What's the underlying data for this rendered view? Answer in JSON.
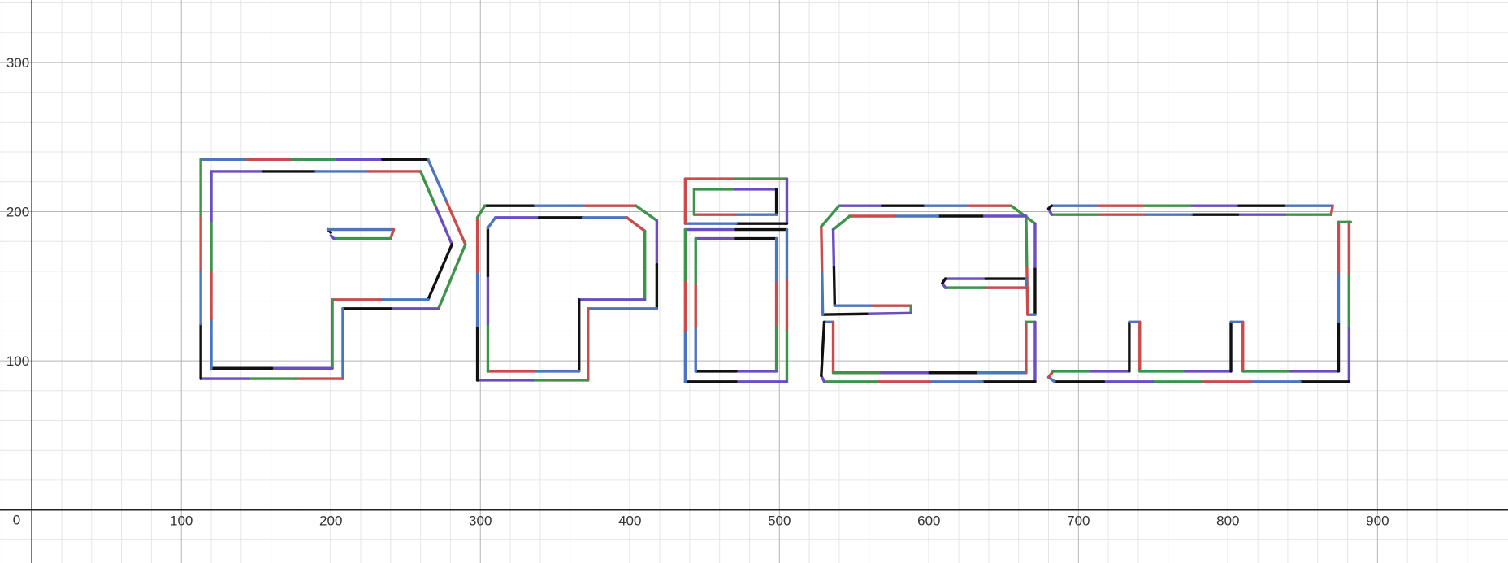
{
  "chart_data": {
    "type": "line",
    "title": "",
    "xlabel": "",
    "ylabel": "",
    "xlim": [
      -21.3,
      987.3
    ],
    "ylim": [
      -35.6,
      341.9
    ],
    "grid": true,
    "minor_step": 20,
    "major_step": 100,
    "origin_label": "0",
    "x_ticks": [
      100,
      200,
      300,
      400,
      500,
      600,
      700,
      800,
      900
    ],
    "y_ticks": [
      100,
      200,
      300
    ],
    "x_tick_labels": [
      "100",
      "200",
      "300",
      "400",
      "500",
      "600",
      "700",
      "800",
      "900"
    ],
    "y_tick_labels": [
      "100",
      "200",
      "300"
    ],
    "colors": [
      "#4a76c0",
      "#c94b4b",
      "#3c9349",
      "#6a4cc3",
      "#111111"
    ],
    "series": [
      {
        "values": [
          [
            113,
            235
          ],
          [
            265,
            235
          ],
          [
            290,
            178
          ],
          [
            272,
            135
          ],
          [
            208,
            135
          ],
          [
            208,
            88
          ],
          [
            113,
            88
          ],
          [
            113,
            235
          ]
        ]
      },
      {
        "values": [
          [
            120,
            227
          ],
          [
            260,
            227
          ],
          [
            281,
            178
          ],
          [
            265,
            141
          ],
          [
            201,
            141
          ],
          [
            201,
            95
          ],
          [
            120,
            95
          ],
          [
            120,
            227
          ]
        ]
      },
      {
        "values": [
          [
            200,
            186
          ],
          [
            198,
            188
          ],
          [
            242,
            188
          ],
          [
            240,
            182
          ],
          [
            202,
            182
          ],
          [
            200,
            184
          ]
        ]
      },
      {
        "values": [
          [
            303,
            204
          ],
          [
            404,
            204
          ],
          [
            418,
            194
          ],
          [
            418,
            135
          ],
          [
            372,
            135
          ],
          [
            372,
            87
          ],
          [
            298,
            87
          ],
          [
            298,
            196
          ],
          [
            303,
            204
          ]
        ]
      },
      {
        "values": [
          [
            310,
            196
          ],
          [
            398,
            196
          ],
          [
            410,
            187
          ],
          [
            410,
            141
          ],
          [
            366,
            141
          ],
          [
            366,
            93
          ],
          [
            305,
            93
          ],
          [
            305,
            189
          ],
          [
            310,
            196
          ]
        ]
      },
      {
        "values": [
          [
            437,
            222
          ],
          [
            505,
            222
          ],
          [
            505,
            192
          ],
          [
            437,
            192
          ],
          [
            437,
            222
          ]
        ]
      },
      {
        "values": [
          [
            443,
            215
          ],
          [
            498,
            215
          ],
          [
            498,
            198
          ],
          [
            443,
            198
          ],
          [
            443,
            215
          ]
        ]
      },
      {
        "values": [
          [
            437,
            188
          ],
          [
            505,
            188
          ],
          [
            505,
            86
          ],
          [
            437,
            86
          ],
          [
            437,
            188
          ]
        ]
      },
      {
        "values": [
          [
            444,
            182
          ],
          [
            498,
            182
          ],
          [
            498,
            93
          ],
          [
            444,
            93
          ],
          [
            444,
            182
          ]
        ]
      },
      {
        "values": [
          [
            540,
            204
          ],
          [
            655,
            204
          ],
          [
            671,
            192
          ],
          [
            671,
            131
          ],
          [
            666,
            131
          ],
          [
            665,
            197
          ],
          [
            547,
            197
          ],
          [
            536,
            188
          ],
          [
            537,
            137
          ],
          [
            588,
            137
          ],
          [
            588,
            132
          ],
          [
            529,
            131
          ],
          [
            528,
            190
          ],
          [
            540,
            204
          ]
        ]
      },
      {
        "values": [
          [
            611,
            155
          ],
          [
            665,
            155
          ],
          [
            665,
            149
          ],
          [
            611,
            149
          ],
          [
            609,
            152
          ],
          [
            611,
            155
          ]
        ]
      },
      {
        "values": [
          [
            530,
            126
          ],
          [
            536,
            126
          ],
          [
            536,
            92
          ],
          [
            665,
            92
          ],
          [
            665,
            126
          ],
          [
            671,
            126
          ],
          [
            671,
            86
          ],
          [
            530,
            86
          ],
          [
            528,
            90
          ],
          [
            530,
            126
          ]
        ]
      },
      {
        "values": [
          [
            682,
            204
          ],
          [
            870,
            204
          ],
          [
            869,
            198
          ],
          [
            682,
            198
          ],
          [
            680,
            202
          ],
          [
            682,
            204
          ]
        ]
      },
      {
        "values": [
          [
            882,
            193
          ],
          [
            881,
            193
          ],
          [
            881,
            86
          ],
          [
            684,
            86
          ],
          [
            680,
            89
          ],
          [
            683,
            93
          ],
          [
            734,
            93
          ],
          [
            734,
            126
          ],
          [
            741,
            126
          ],
          [
            741,
            93
          ],
          [
            802,
            93
          ],
          [
            802,
            126
          ],
          [
            810,
            126
          ],
          [
            810,
            93
          ],
          [
            874,
            93
          ],
          [
            874,
            193
          ],
          [
            882,
            193
          ]
        ]
      }
    ]
  }
}
